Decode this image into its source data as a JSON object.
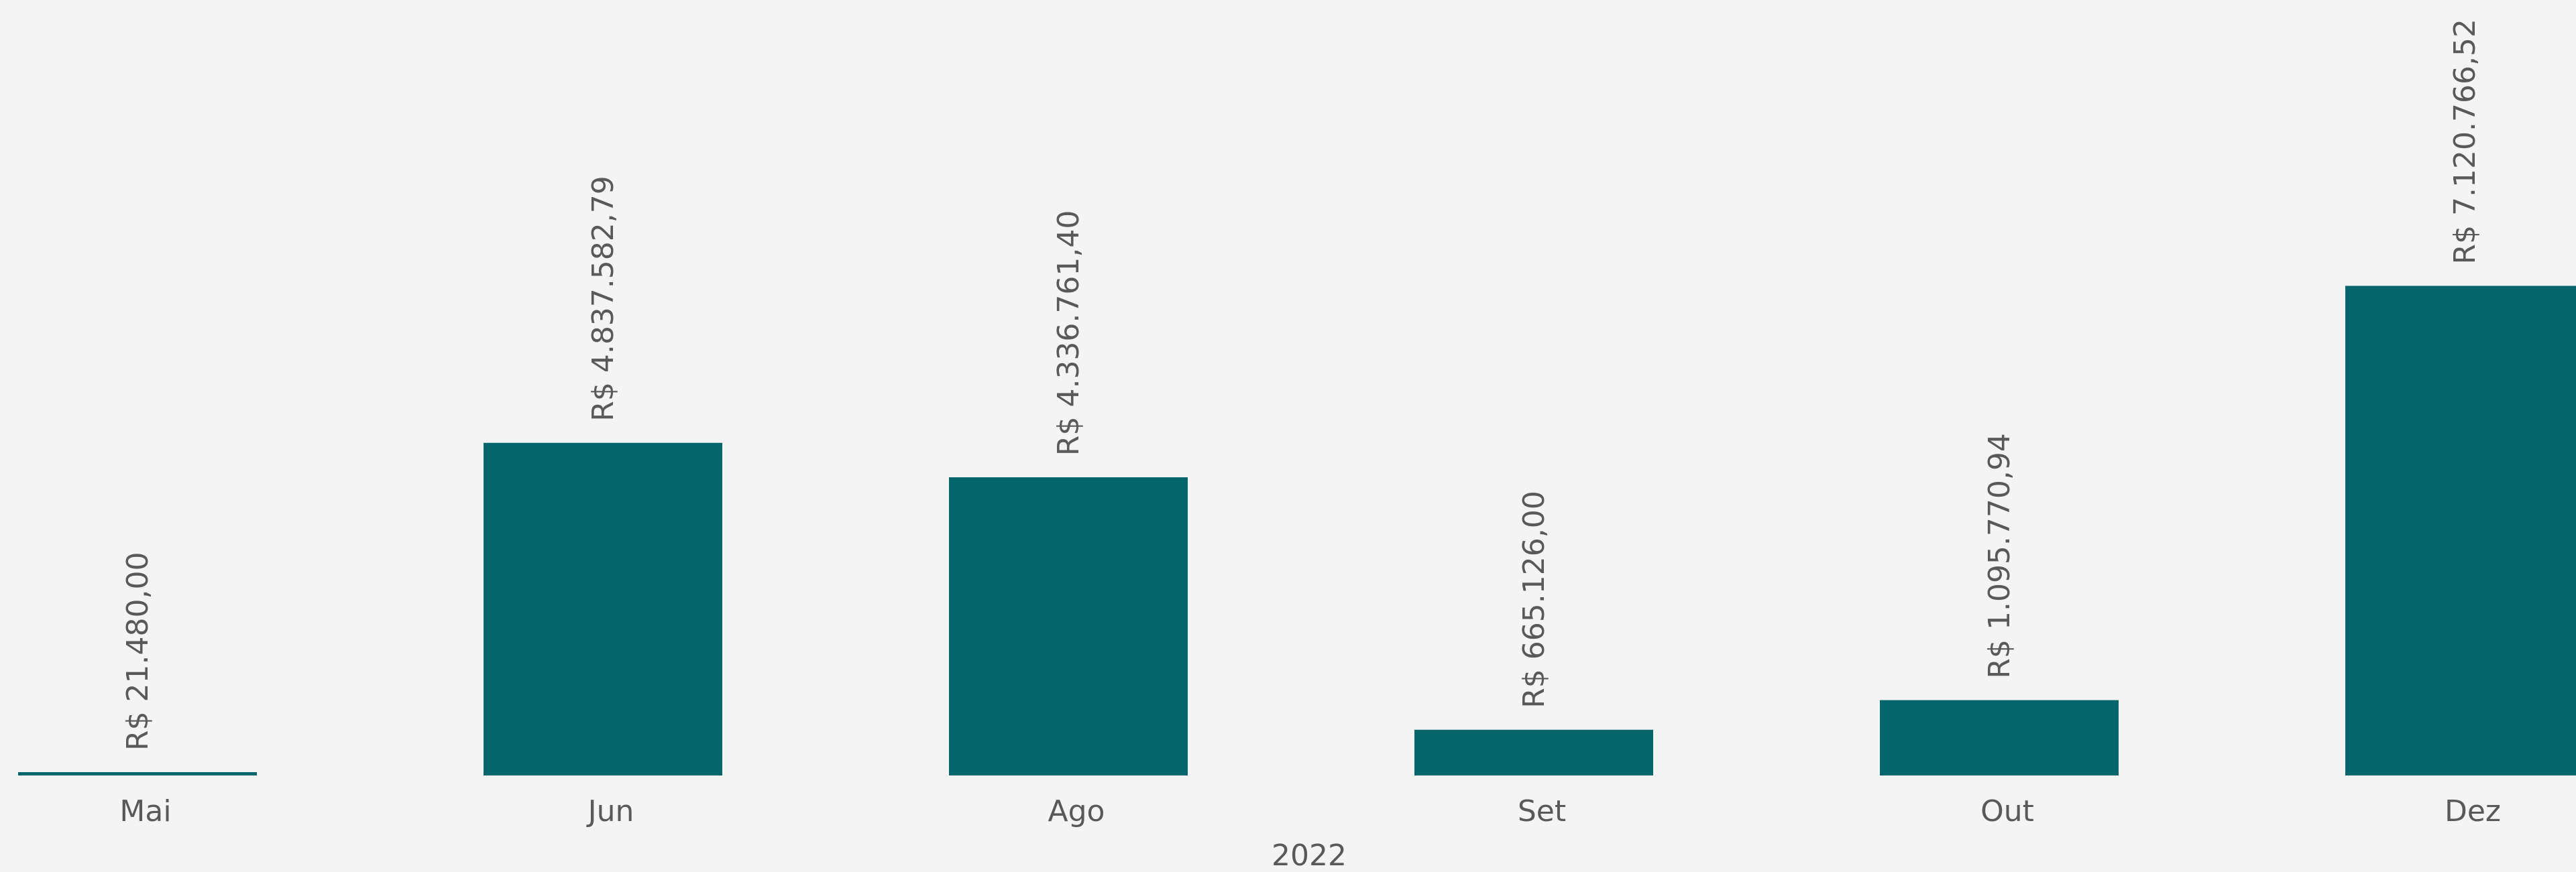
{
  "chart_data": {
    "type": "bar",
    "group_label": "2022",
    "categories": [
      "Mai",
      "Jun",
      "Ago",
      "Set",
      "Out",
      "Dez"
    ],
    "values": [
      21480.0,
      4837582.79,
      4336761.4,
      665126.0,
      1095770.94,
      7120766.52
    ],
    "data_labels": [
      "R$ 21.480,00",
      "R$ 4.837.582,79",
      "R$ 4.336.761,40",
      "R$ 665.126,00",
      "R$ 1.095.770,94",
      "R$ 7.120.766,52"
    ],
    "ylim": [
      0,
      11200000
    ],
    "grid": false,
    "legend": "none",
    "bar_color": "#05656c"
  }
}
